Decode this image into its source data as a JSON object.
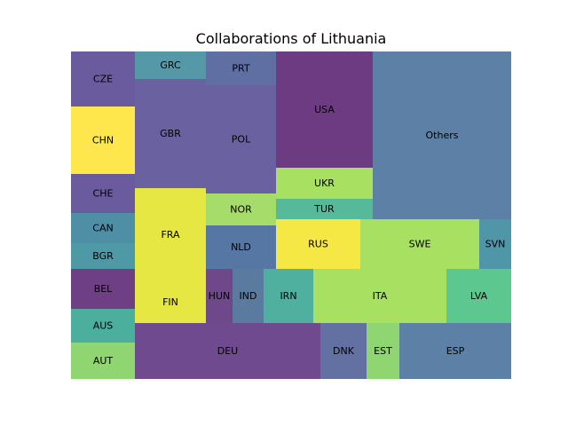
{
  "chart_data": {
    "type": "treemap",
    "title": "Collaborations of Lithuania",
    "cells": [
      {
        "label": "CZE",
        "color": "#6a5a9e"
      },
      {
        "label": "CHN",
        "color": "#fde74c"
      },
      {
        "label": "CHE",
        "color": "#6a5a9e"
      },
      {
        "label": "CAN",
        "color": "#4f8fa6"
      },
      {
        "label": "BGR",
        "color": "#4f98a6"
      },
      {
        "label": "BEL",
        "color": "#6f3f86"
      },
      {
        "label": "AUS",
        "color": "#4caf9e"
      },
      {
        "label": "AUT",
        "color": "#8fd672"
      },
      {
        "label": "GRC",
        "color": "#5599a8"
      },
      {
        "label": "GBR",
        "color": "#6a62a0"
      },
      {
        "label": "FRA",
        "color": "#e6e743"
      },
      {
        "label": "FIN",
        "color": "#e6e743"
      },
      {
        "label": "PRT",
        "color": "#5f6fa4"
      },
      {
        "label": "POL",
        "color": "#6a62a0"
      },
      {
        "label": "NOR",
        "color": "#a6dc6a"
      },
      {
        "label": "NLD",
        "color": "#5677a4"
      },
      {
        "label": "HUN",
        "color": "#6e4889"
      },
      {
        "label": "IND",
        "color": "#5b7aa0"
      },
      {
        "label": "DEU",
        "color": "#6f4a8e"
      },
      {
        "label": "USA",
        "color": "#6d3b82"
      },
      {
        "label": "UKR",
        "color": "#a8e061"
      },
      {
        "label": "TUR",
        "color": "#56b99a"
      },
      {
        "label": "RUS",
        "color": "#f6e844"
      },
      {
        "label": "IRN",
        "color": "#4fb0a0"
      },
      {
        "label": "ITA",
        "color": "#a8e061"
      },
      {
        "label": "DNK",
        "color": "#6270a2"
      },
      {
        "label": "EST",
        "color": "#8fd672"
      },
      {
        "label": "Others",
        "color": "#5c80a6"
      },
      {
        "label": "SWE",
        "color": "#a8e061"
      },
      {
        "label": "SVN",
        "color": "#4f96a8"
      },
      {
        "label": "LVA",
        "color": "#5cc78e"
      },
      {
        "label": "ESP",
        "color": "#5c80a6"
      }
    ]
  }
}
